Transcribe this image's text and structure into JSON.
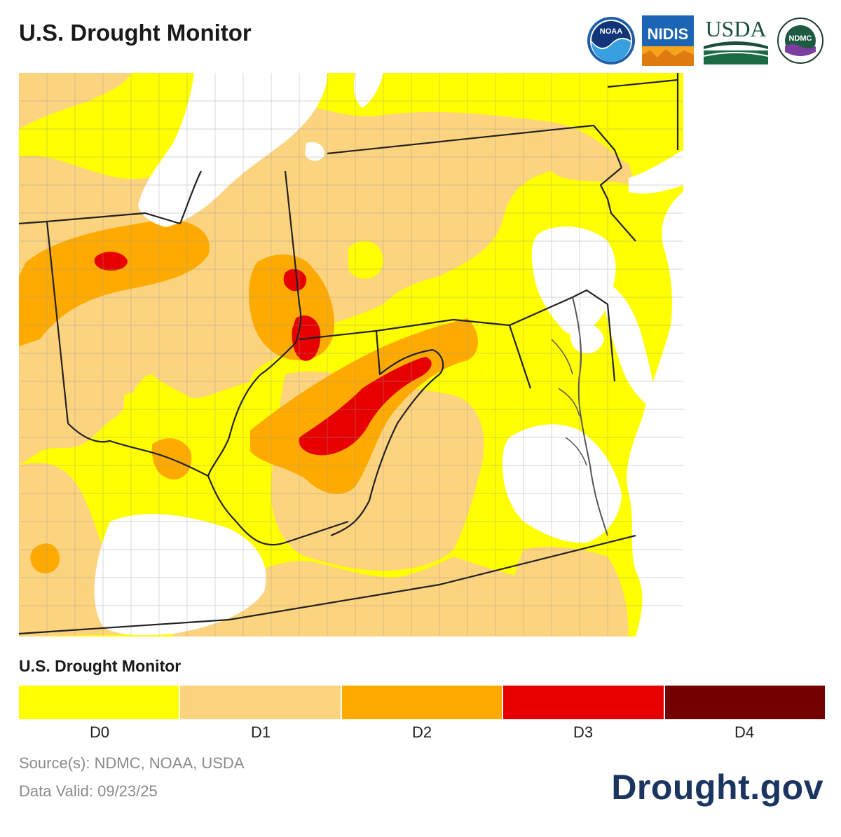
{
  "title": "U.S. Drought Monitor",
  "logos": [
    {
      "name": "noaa-logo",
      "text": "NOAA"
    },
    {
      "name": "nidis-logo",
      "text": "NIDIS"
    },
    {
      "name": "usda-logo",
      "text": "USDA"
    },
    {
      "name": "ndmc-logo",
      "text": "NDMC"
    }
  ],
  "legend": {
    "title": "U.S. Drought Monitor",
    "categories": [
      {
        "label": "D0",
        "color": "#ffff00"
      },
      {
        "label": "D1",
        "color": "#fcd37f"
      },
      {
        "label": "D2",
        "color": "#ffaa00"
      },
      {
        "label": "D3",
        "color": "#e60000"
      },
      {
        "label": "D4",
        "color": "#730000"
      }
    ]
  },
  "source": "Source(s): NDMC, NOAA, USDA",
  "data_valid": "Data Valid: 09/23/25",
  "brand": "Drought.gov"
}
